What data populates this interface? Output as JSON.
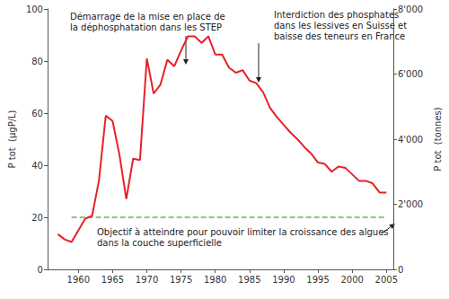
{
  "chart_data": {
    "type": "line",
    "x": [
      1957,
      1958,
      1959,
      1960,
      1961,
      1962,
      1963,
      1964,
      1965,
      1966,
      1967,
      1968,
      1969,
      1970,
      1971,
      1972,
      1973,
      1974,
      1975,
      1976,
      1977,
      1978,
      1979,
      1980,
      1981,
      1982,
      1983,
      1984,
      1985,
      1986,
      1987,
      1988,
      1989,
      1990,
      1991,
      1992,
      1993,
      1994,
      1995,
      1996,
      1997,
      1998,
      1999,
      2000,
      2001,
      2002,
      2003,
      2004,
      2005
    ],
    "xlim": [
      1955.5,
      2006
    ],
    "xticks": [
      1960,
      1965,
      1970,
      1975,
      1980,
      1985,
      1990,
      1995,
      2000,
      2005
    ],
    "ylabel": "P tot  (µgP/L)",
    "ylim": [
      0,
      100
    ],
    "yticks": [
      0,
      20,
      40,
      60,
      80,
      100
    ],
    "y2label": "P tot  (tonnes)",
    "y2lim": [
      0,
      8000
    ],
    "y2ticks": [
      0,
      {
        "value": 2000,
        "label": "2'000"
      },
      {
        "value": 4000,
        "label": "4'000"
      },
      {
        "value": 6000,
        "label": "6'000"
      },
      {
        "value": 8000,
        "label": "8'000"
      }
    ],
    "grid": false,
    "series": [
      {
        "color": "#e8202a",
        "line_style": "solid",
        "values": [
          13.5,
          11.5,
          10.5,
          15,
          19.5,
          20.5,
          34,
          59,
          57,
          44,
          27,
          42.5,
          42,
          81,
          67.5,
          71,
          80.5,
          78,
          84,
          89.5,
          89.5,
          87,
          89.5,
          82.5,
          82.5,
          77.5,
          75.5,
          76.5,
          72.5,
          71.5,
          68,
          62,
          58.5,
          55.5,
          52.5,
          50,
          47,
          44.5,
          41,
          40.5,
          37.5,
          39.5,
          39,
          36.5,
          34,
          34,
          33,
          29.5,
          29.5
        ]
      },
      {
        "name": "Objectif à atteindre pour pouvoir limiter la croissance des algues\ndans la couche superficielle",
        "color": "#66b84a",
        "line_style": "dashed",
        "values": [
          null,
          null,
          20,
          20,
          20,
          20,
          20,
          20,
          20,
          20,
          20,
          20,
          20,
          20,
          20,
          20,
          20,
          20,
          20,
          20,
          20,
          20,
          20,
          20,
          20,
          20,
          20,
          20,
          20,
          20,
          20,
          20,
          20,
          20,
          20,
          20,
          20,
          20,
          20,
          20,
          20,
          20,
          20,
          20,
          20,
          20,
          20,
          20,
          20
        ]
      }
    ],
    "annotations": [
      "Démarrage de la mise en place de\nla déphosphatation dans les STEP",
      "Interdiction des phosphates\ndans les lessives en Suisse et\nbaisse des teneurs en France"
    ]
  }
}
